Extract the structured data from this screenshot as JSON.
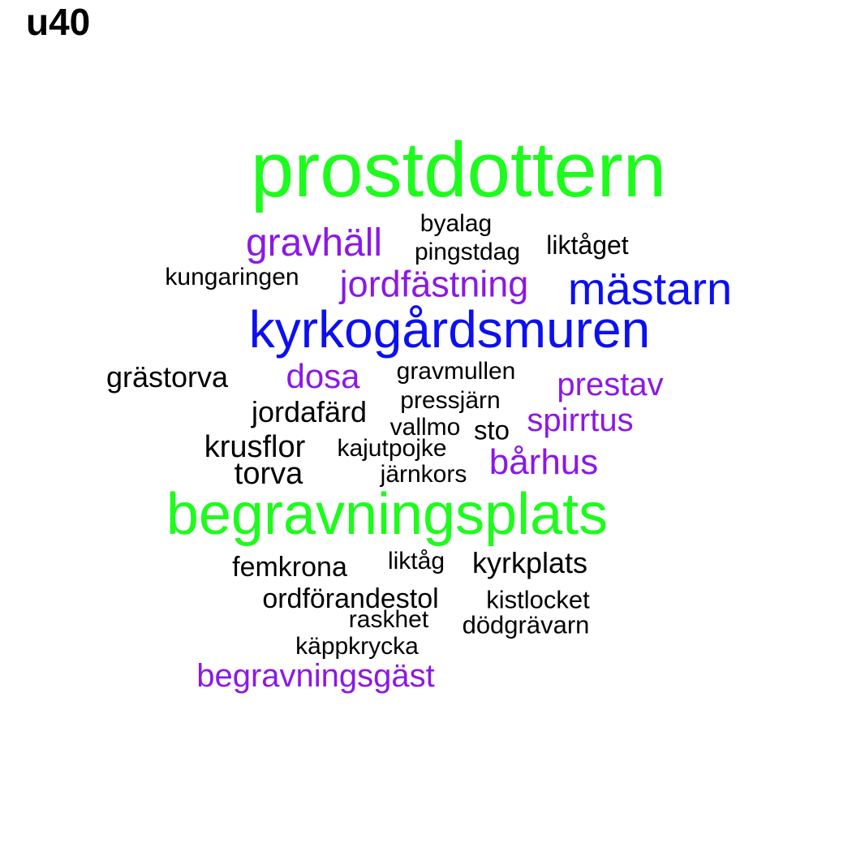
{
  "title": "u40",
  "colors": {
    "green": "#1dfc1d",
    "blue": "#0c10f0",
    "purple": "#8c18e6",
    "black": "#000000"
  },
  "words": [
    {
      "text": "prostdottern",
      "color": "green"
    },
    {
      "text": "byalag",
      "color": "black"
    },
    {
      "text": "gravhäll",
      "color": "purple"
    },
    {
      "text": "pingstdag",
      "color": "black"
    },
    {
      "text": "liktåget",
      "color": "black"
    },
    {
      "text": "kungaringen",
      "color": "black"
    },
    {
      "text": "jordfästning",
      "color": "purple"
    },
    {
      "text": "mästarn",
      "color": "blue"
    },
    {
      "text": "kyrkogårdsmuren",
      "color": "blue"
    },
    {
      "text": "grästorva",
      "color": "black"
    },
    {
      "text": "dosa",
      "color": "purple"
    },
    {
      "text": "gravmullen",
      "color": "black"
    },
    {
      "text": "prestav",
      "color": "purple"
    },
    {
      "text": "pressjärn",
      "color": "black"
    },
    {
      "text": "jordafärd",
      "color": "black"
    },
    {
      "text": "spirrtus",
      "color": "purple"
    },
    {
      "text": "vallmo",
      "color": "black"
    },
    {
      "text": "sto",
      "color": "black"
    },
    {
      "text": "krusflor",
      "color": "black"
    },
    {
      "text": "kajutpojke",
      "color": "black"
    },
    {
      "text": "bårhus",
      "color": "purple"
    },
    {
      "text": "torva",
      "color": "black"
    },
    {
      "text": "järnkors",
      "color": "black"
    },
    {
      "text": "begravningsplats",
      "color": "green"
    },
    {
      "text": "liktåg",
      "color": "black"
    },
    {
      "text": "kyrkplats",
      "color": "black"
    },
    {
      "text": "femkrona",
      "color": "black"
    },
    {
      "text": "ordförandestol",
      "color": "black"
    },
    {
      "text": "kistlocket",
      "color": "black"
    },
    {
      "text": "raskhet",
      "color": "black"
    },
    {
      "text": "dödgrävarn",
      "color": "black"
    },
    {
      "text": "käppkrycka",
      "color": "black"
    },
    {
      "text": "begravningsgäst",
      "color": "purple"
    }
  ]
}
